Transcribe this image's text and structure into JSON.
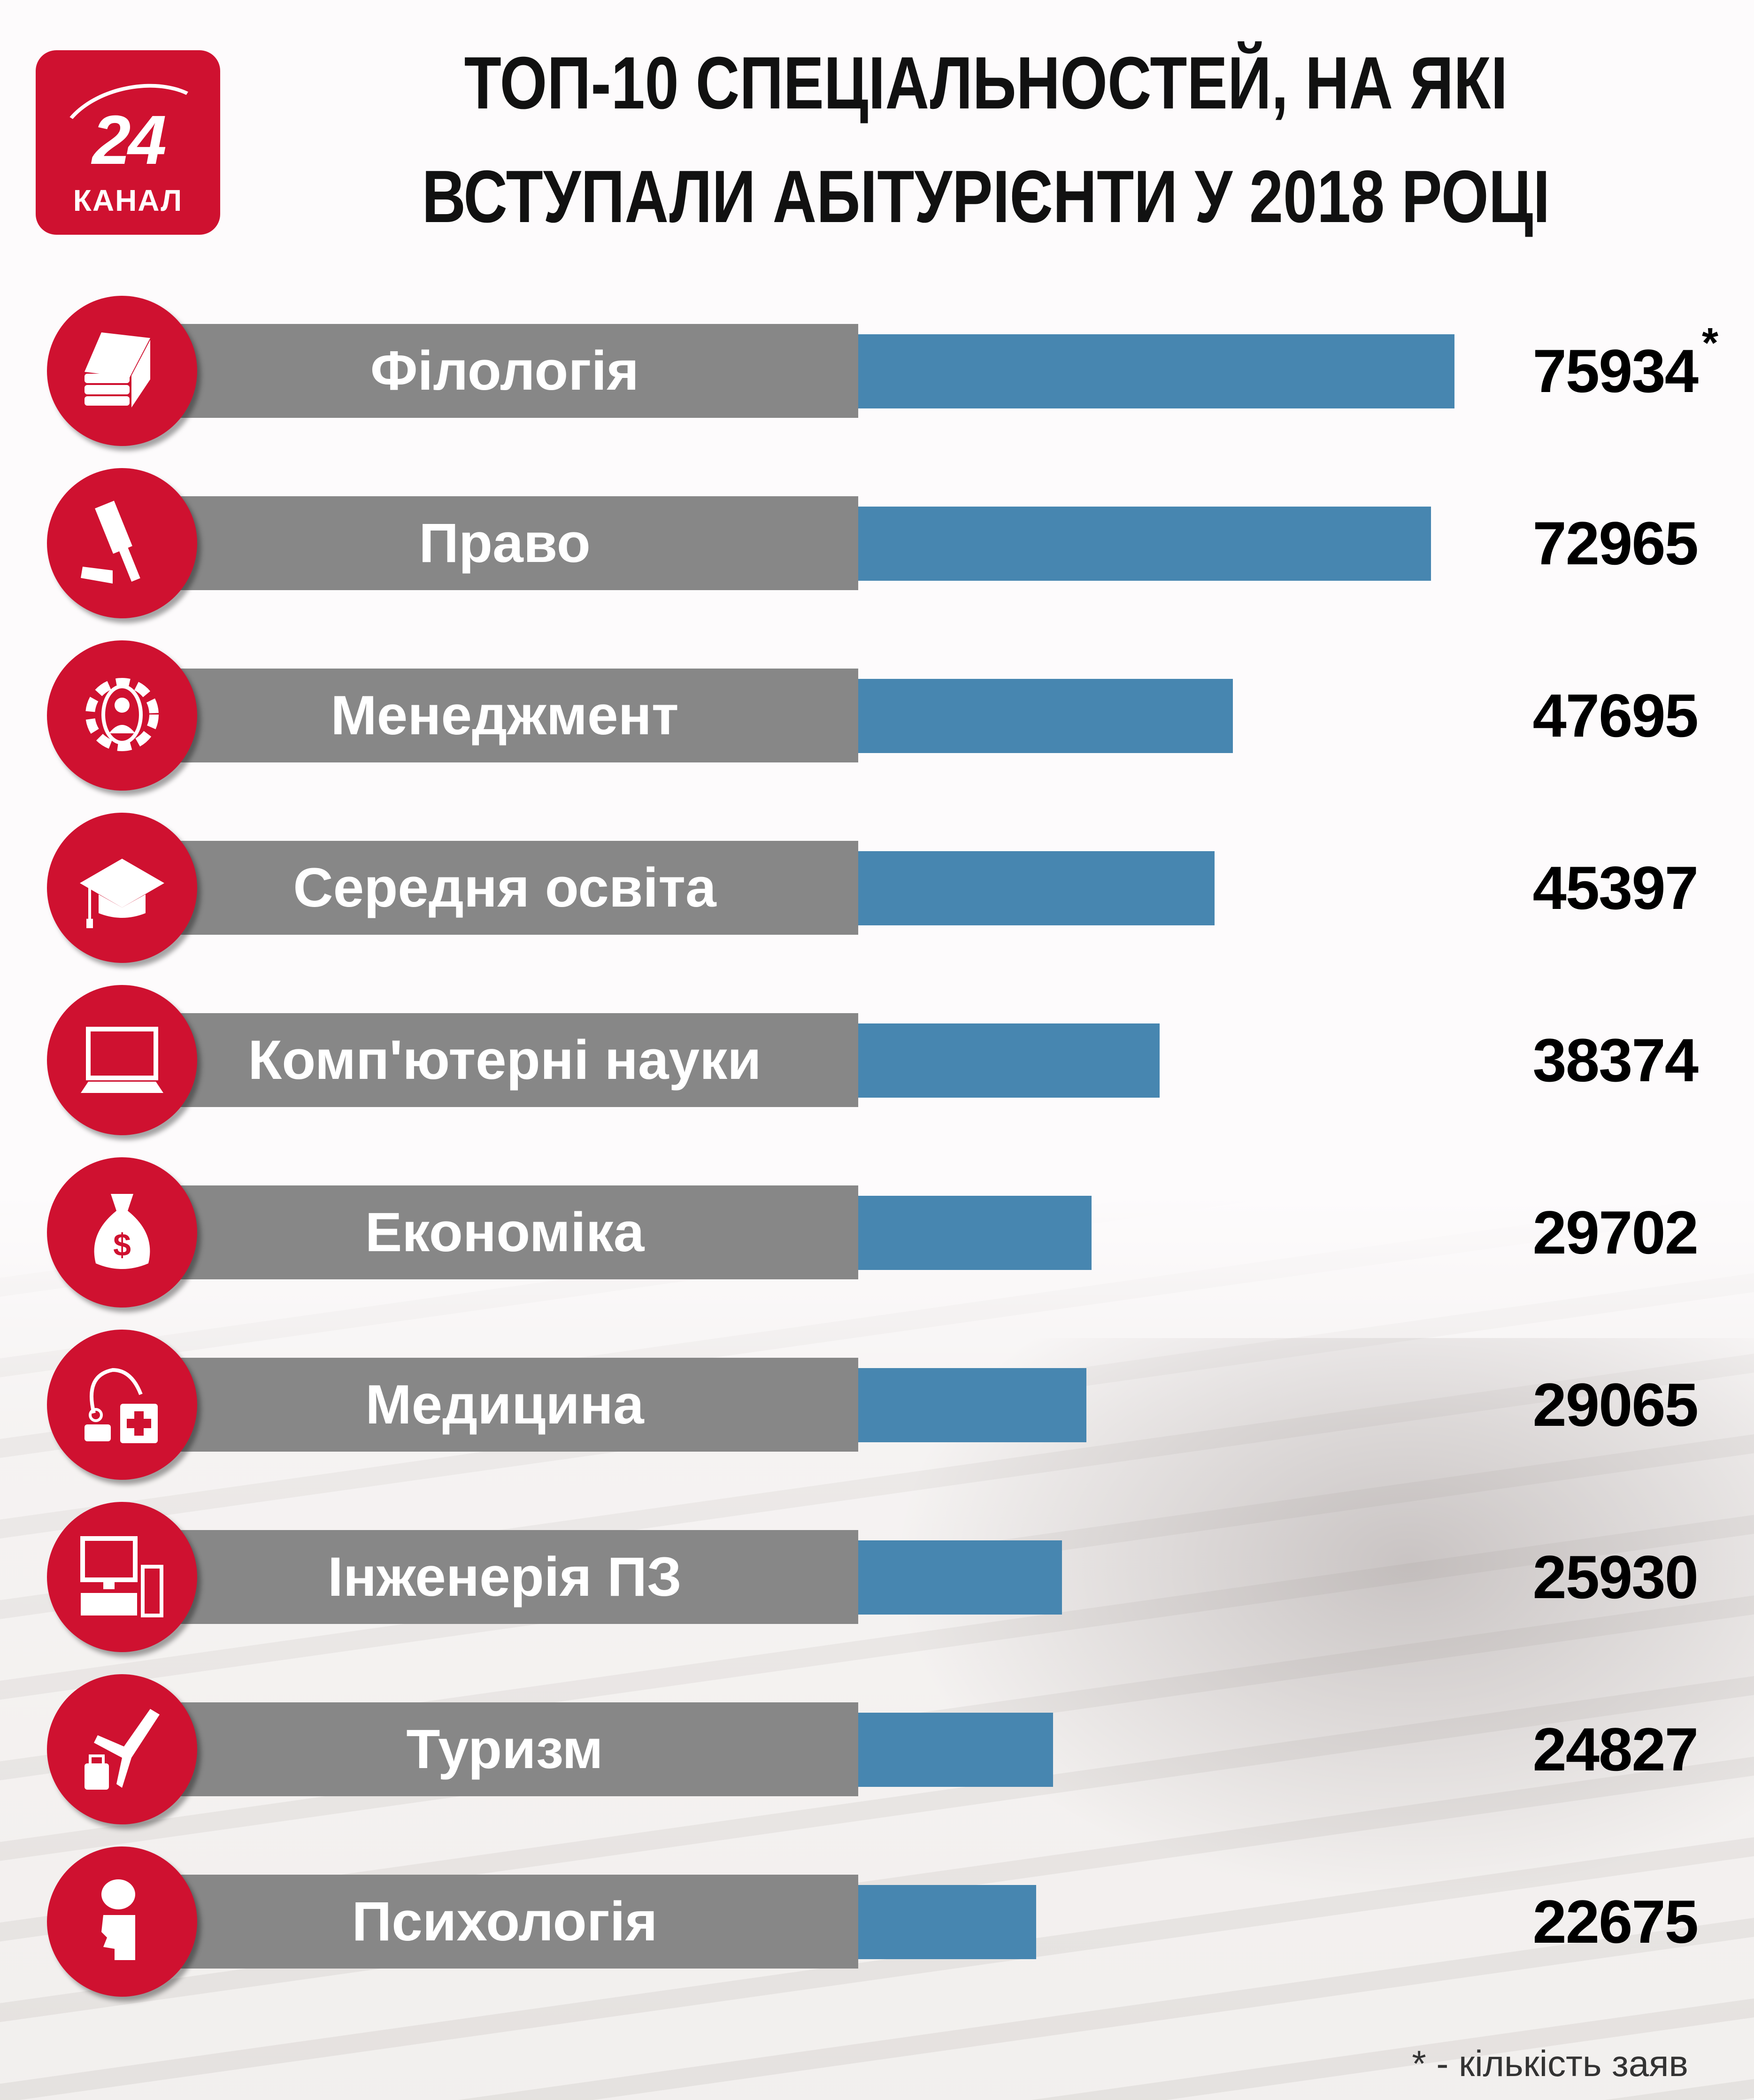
{
  "header": {
    "logo_number": "24",
    "logo_word": "КАНАЛ",
    "title_line1": "ТОП-10 СПЕЦІАЛЬНОСТЕЙ, НА ЯКІ",
    "title_line2": "ВСТУПАЛИ АБІТУРІЄНТИ У 2018 РОЦІ"
  },
  "colors": {
    "brand_red": "#cf1130",
    "bar_blue": "#4786b0",
    "label_gray": "#878787"
  },
  "rows": [
    {
      "label": "Філологія",
      "value": "75934",
      "icon": "books-icon"
    },
    {
      "label": "Право",
      "value": "72965",
      "icon": "gavel-icon"
    },
    {
      "label": "Менеджмент",
      "value": "47695",
      "icon": "gear-person-icon"
    },
    {
      "label": "Середня освіта",
      "value": "45397",
      "icon": "graduation-cap-icon"
    },
    {
      "label": "Комп'ютерні науки",
      "value": "38374",
      "icon": "laptop-icon"
    },
    {
      "label": "Економіка",
      "value": "29702",
      "icon": "money-bag-icon"
    },
    {
      "label": "Медицина",
      "value": "29065",
      "icon": "medical-kit-icon"
    },
    {
      "label": "Інженерія ПЗ",
      "value": "25930",
      "icon": "desktop-computer-icon"
    },
    {
      "label": "Туризм",
      "value": "24827",
      "icon": "plane-luggage-icon"
    },
    {
      "label": "Психологія",
      "value": "22675",
      "icon": "head-brain-icon"
    }
  ],
  "asterisk": "*",
  "footnote": "* - кількість заяв",
  "chart_data": {
    "type": "bar",
    "orientation": "horizontal",
    "title": "ТОП-10 СПЕЦІАЛЬНОСТЕЙ, НА ЯКІ ВСТУПАЛИ АБІТУРІЄНТИ У 2018 РОЦІ",
    "categories": [
      "Філологія",
      "Право",
      "Менеджмент",
      "Середня освіта",
      "Комп'ютерні науки",
      "Економіка",
      "Медицина",
      "Інженерія ПЗ",
      "Туризм",
      "Психологія"
    ],
    "values": [
      75934,
      72965,
      47695,
      45397,
      38374,
      29702,
      29065,
      25930,
      24827,
      22675
    ],
    "xlabel": "",
    "ylabel": "",
    "value_note": "* - кількість заяв",
    "grid": false,
    "legend": null
  }
}
